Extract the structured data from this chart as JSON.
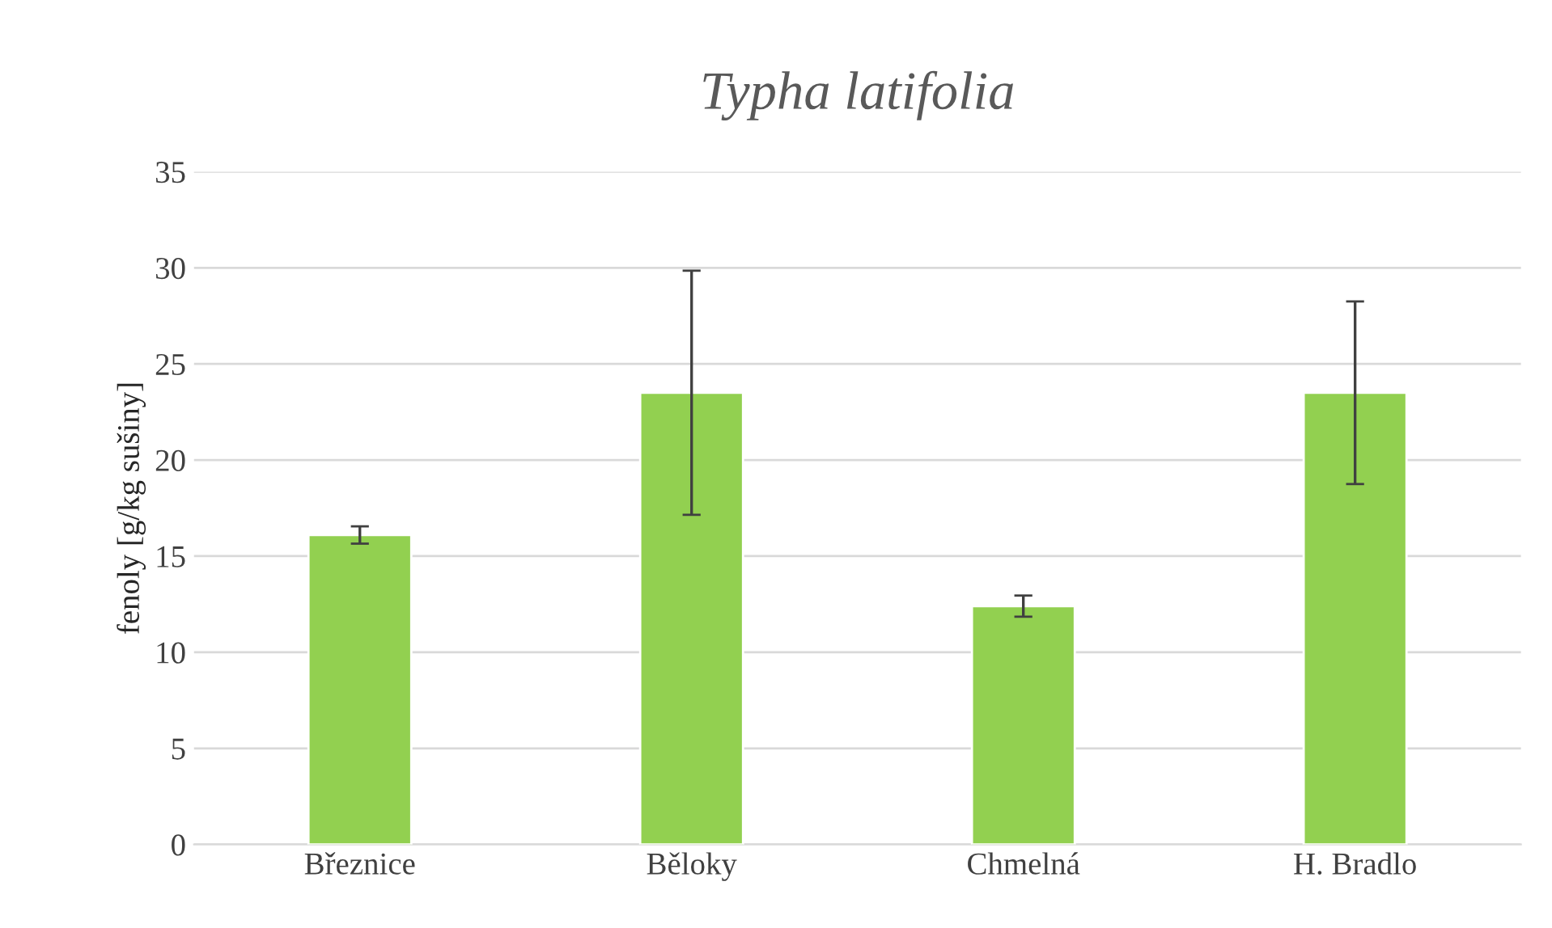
{
  "chart_data": {
    "type": "bar",
    "title": "Typha latifolia",
    "ylabel": "fenoly [g/kg sušiny]",
    "categories": [
      "Březnice",
      "Běloky",
      "Chmelná",
      "H. Bradlo"
    ],
    "values": [
      16.1,
      23.5,
      12.4,
      23.5
    ],
    "errors": [
      0.45,
      6.35,
      0.55,
      4.75
    ],
    "color": "#92d050",
    "ylim": [
      0,
      35
    ],
    "yticks": [
      0,
      5,
      10,
      15,
      20,
      25,
      30,
      35
    ],
    "grid": "y"
  }
}
